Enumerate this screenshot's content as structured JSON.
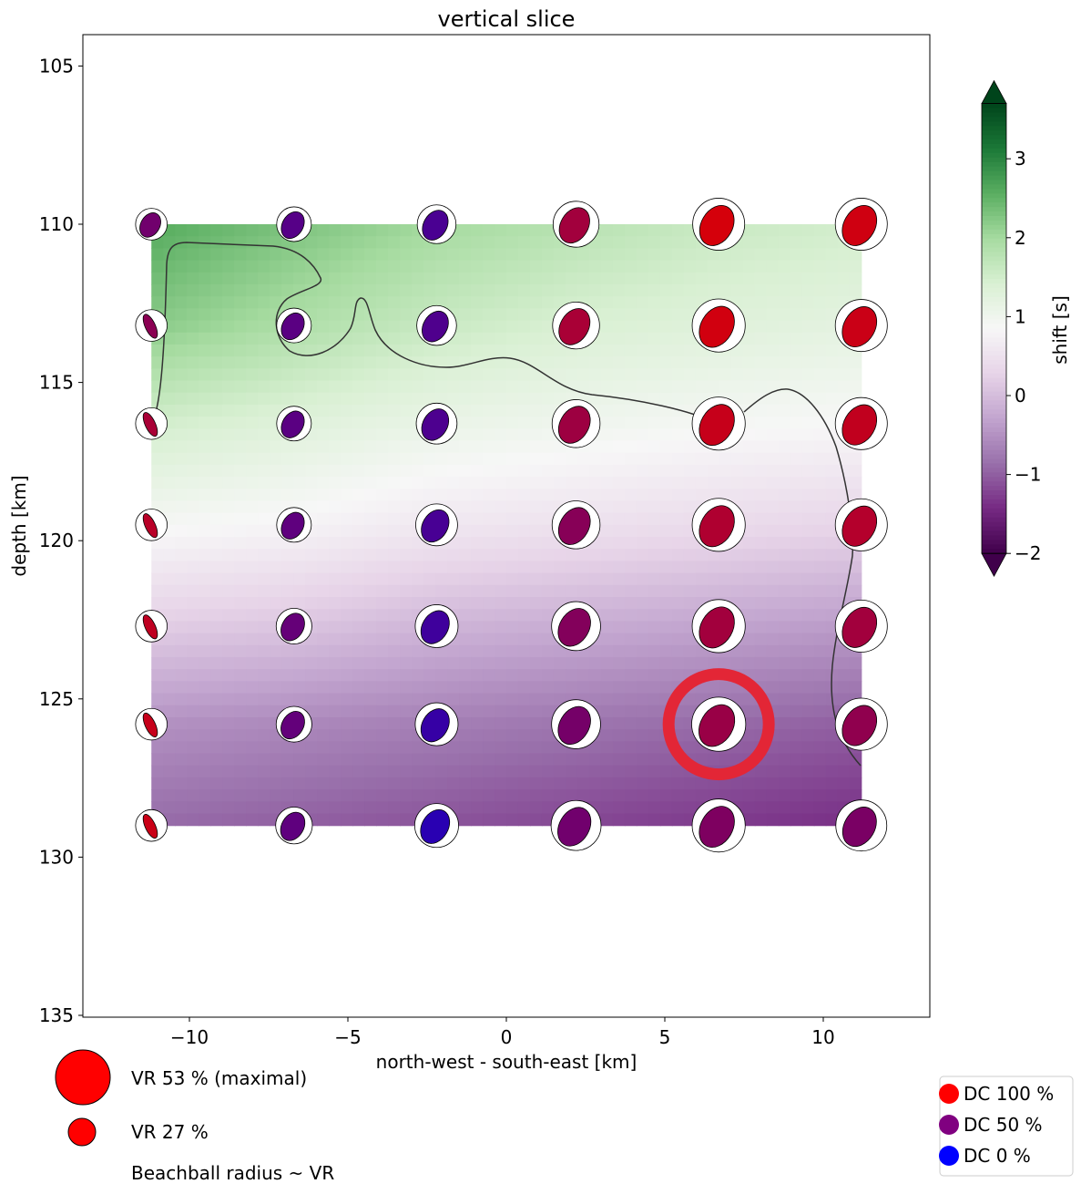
{
  "chart_data": {
    "type": "heatmap",
    "title": "vertical slice",
    "xlabel": "north-west - south-east [km]",
    "ylabel": "depth [km]",
    "xlim": [
      -13.4,
      13.4
    ],
    "ylim": [
      135,
      104
    ],
    "xticks": [
      "−10",
      "−5",
      "0",
      "5",
      "10"
    ],
    "xtick_values": [
      -10,
      -5,
      0,
      5,
      10
    ],
    "yticks": [
      "105",
      "110",
      "115",
      "120",
      "125",
      "130",
      "135"
    ],
    "ytick_values": [
      105,
      110,
      115,
      120,
      125,
      130,
      135
    ],
    "grid": false,
    "colorbar": {
      "label": "shift [s]",
      "colormap": "PRGn",
      "range": [
        -2,
        3.7
      ],
      "extend": "both",
      "ticks": [
        "−2",
        "−1",
        "0",
        "1",
        "2",
        "3"
      ],
      "tick_values": [
        -2,
        -1,
        0,
        1,
        2,
        3
      ]
    },
    "x": [
      -11.2,
      -6.7,
      -2.2,
      2.2,
      6.7,
      11.2
    ],
    "y": [
      110,
      113.2,
      116.3,
      119.5,
      122.7,
      125.8,
      129
    ],
    "shift": [
      [
        2.6,
        2.3,
        2.0,
        1.8,
        1.6,
        1.5
      ],
      [
        2.2,
        1.9,
        1.6,
        1.4,
        1.3,
        1.2
      ],
      [
        1.5,
        1.3,
        1.1,
        1.0,
        0.9,
        0.85
      ],
      [
        0.9,
        0.8,
        0.6,
        0.5,
        0.4,
        0.3
      ],
      [
        0.2,
        0.1,
        -0.1,
        -0.2,
        -0.3,
        -0.4
      ],
      [
        -0.5,
        -0.6,
        -0.7,
        -0.8,
        -0.9,
        -1.0
      ],
      [
        -0.9,
        -1.0,
        -1.1,
        -1.2,
        -1.3,
        -1.4
      ]
    ],
    "contour_level": 1,
    "vr": [
      [
        31,
        34,
        38,
        45,
        51,
        51
      ],
      [
        31,
        34,
        39,
        46,
        52,
        51
      ],
      [
        31,
        34,
        40,
        47,
        52,
        51
      ],
      [
        31,
        34,
        41,
        47,
        52,
        51
      ],
      [
        31,
        35,
        42,
        48,
        52,
        51
      ],
      [
        31,
        35,
        42,
        48,
        53,
        51
      ],
      [
        31,
        36,
        43,
        49,
        52,
        50
      ]
    ],
    "dc": [
      [
        50,
        38,
        33,
        72,
        95,
        92
      ],
      [
        62,
        40,
        35,
        75,
        93,
        90
      ],
      [
        75,
        40,
        34,
        70,
        88,
        86
      ],
      [
        82,
        42,
        32,
        60,
        78,
        80
      ],
      [
        85,
        45,
        28,
        58,
        72,
        72
      ],
      [
        88,
        44,
        24,
        52,
        68,
        64
      ],
      [
        90,
        42,
        18,
        50,
        56,
        54
      ]
    ],
    "best_solution": {
      "x": 6.7,
      "y": 125.8,
      "marker_color": "#e32636"
    },
    "legend_vr": [
      {
        "label": "VR 53 % (maximal)",
        "vr": 53
      },
      {
        "label": "VR 27 %",
        "vr": 27
      },
      {
        "label": "Beachball radius ~ VR"
      }
    ],
    "legend_dc": [
      {
        "label": "DC 100 %",
        "color": "#ff0000"
      },
      {
        "label": "DC 50 %",
        "color": "#800080"
      },
      {
        "label": "DC 0 %",
        "color": "#0000ff"
      }
    ]
  }
}
